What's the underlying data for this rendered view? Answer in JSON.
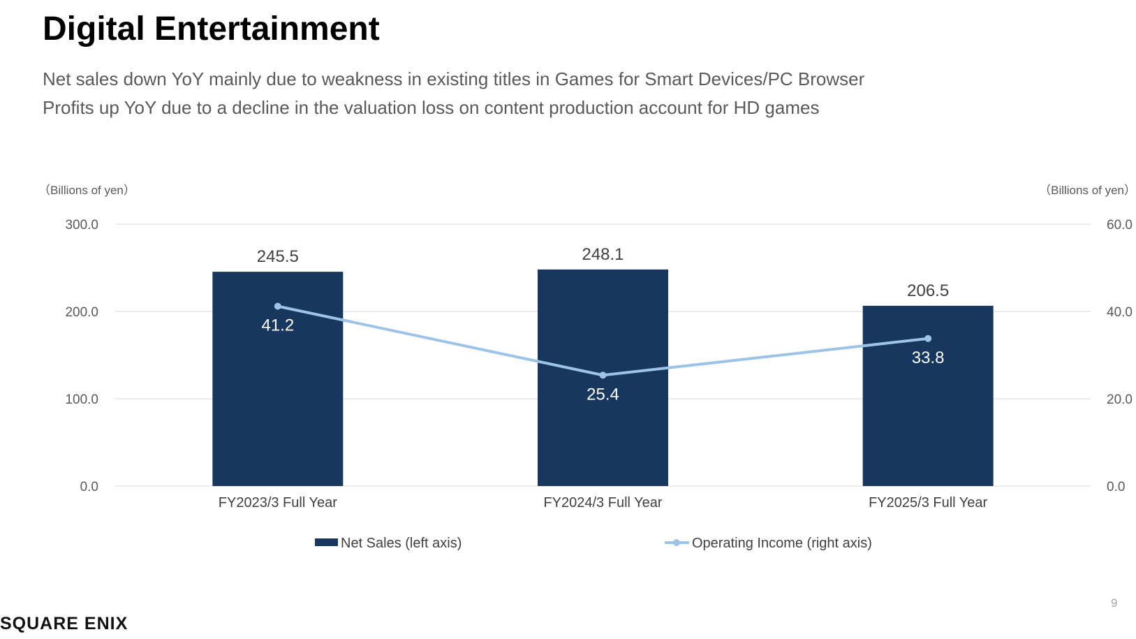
{
  "slide": {
    "title": "Digital Entertainment",
    "subtitle_lines": [
      "Net sales down YoY mainly due to weakness in existing titles in Games for Smart Devices/PC Browser",
      "Profits up YoY due to a decline in the valuation loss on content production account for HD games"
    ],
    "page_number": "9",
    "logo_text": "SQUARE ENIX"
  },
  "chart_data": {
    "type": "bar",
    "categories": [
      "FY2023/3 Full Year",
      "FY2024/3 Full Year",
      "FY2025/3 Full Year"
    ],
    "left_axis_unit": "（Billions of yen）",
    "right_axis_unit": "（Billions of yen）",
    "left_ylim": [
      0,
      300
    ],
    "left_ticks": [
      "0.0",
      "100.0",
      "200.0",
      "300.0"
    ],
    "right_ylim": [
      0,
      60
    ],
    "right_ticks": [
      "0.0",
      "20.0",
      "40.0",
      "60.0"
    ],
    "grid": true,
    "legend_position": "bottom",
    "series": [
      {
        "name": "Net Sales (left axis)",
        "type": "bar",
        "axis": "left",
        "color": "#17375e",
        "values": [
          245.5,
          248.1,
          206.5
        ],
        "labels": [
          "245.5",
          "248.1",
          "206.5"
        ]
      },
      {
        "name": "Operating Income (right axis)",
        "type": "line",
        "axis": "right",
        "color": "#9dc3e6",
        "values": [
          41.2,
          25.4,
          33.8
        ],
        "labels": [
          "41.2",
          "25.4",
          "33.8"
        ]
      }
    ]
  }
}
